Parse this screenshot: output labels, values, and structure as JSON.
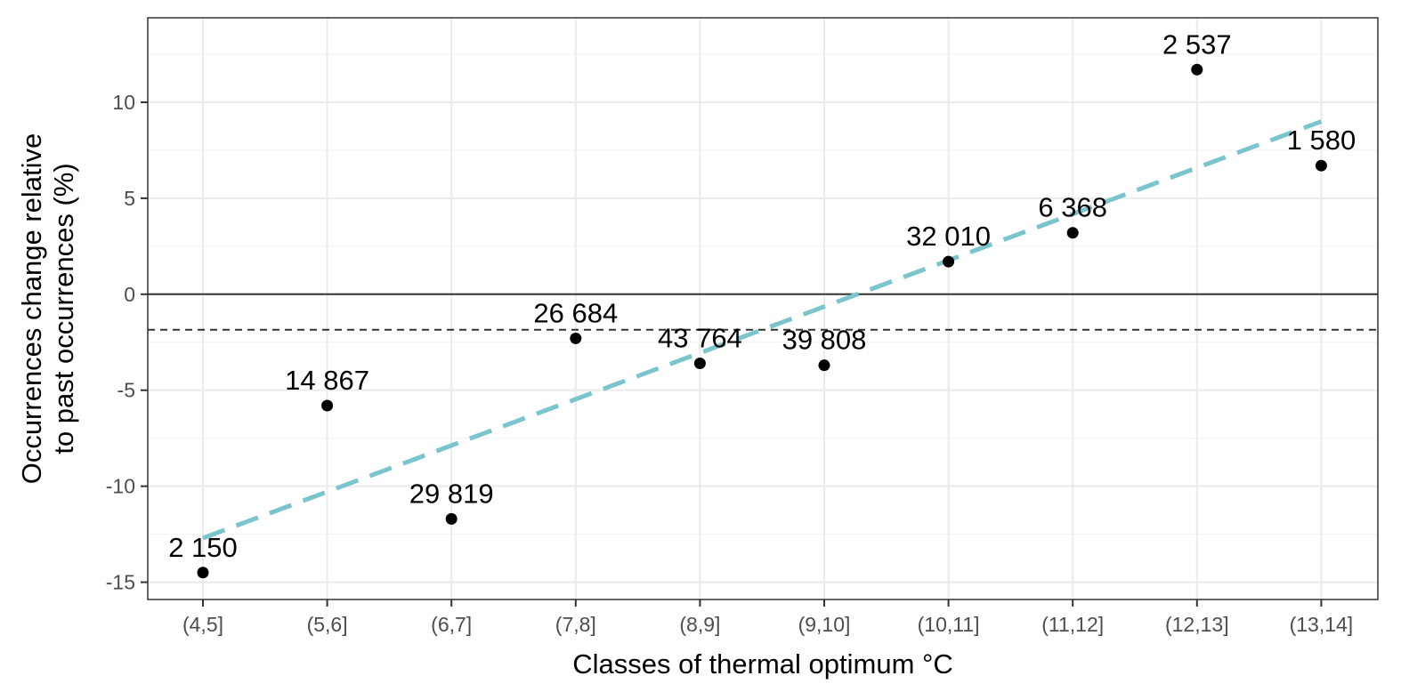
{
  "chart_data": {
    "type": "scatter",
    "title": "",
    "xlabel": "Classes of thermal optimum °C",
    "ylabel_lines": [
      "Occurrences change relative",
      "to past occurrences (%)"
    ],
    "categories": [
      "(4,5]",
      "(5,6]",
      "(6,7]",
      "(7,8]",
      "(8,9]",
      "(9,10]",
      "(10,11]",
      "(11,12]",
      "(12,13]",
      "(13,14]"
    ],
    "series": [
      {
        "values": [
          -14.5,
          -5.8,
          -11.7,
          -2.3,
          -3.6,
          -3.7,
          1.7,
          3.2,
          11.7,
          6.7
        ],
        "labels": [
          "2 150",
          "14 867",
          "29 819",
          "26 684",
          "43 764",
          "39 808",
          "32 010",
          "6 368",
          "2 537",
          "1 580"
        ],
        "color": "#000000"
      }
    ],
    "trend_line": {
      "y_start": -12.7,
      "y_end": 9.0,
      "color": "#7ac5cd",
      "style": "dashed"
    },
    "reference_lines": [
      {
        "y": 0,
        "style": "solid",
        "color": "#333333"
      },
      {
        "y": -1.85,
        "style": "dashed",
        "color": "#333333"
      }
    ],
    "y_ticks": [
      -15,
      -10,
      -5,
      0,
      5,
      10
    ],
    "y_tick_labels": [
      "-15",
      "-10",
      "-5",
      "0",
      "5",
      "10"
    ],
    "ylim": [
      -15.9,
      14.4
    ],
    "grid": true,
    "legend": "none"
  }
}
